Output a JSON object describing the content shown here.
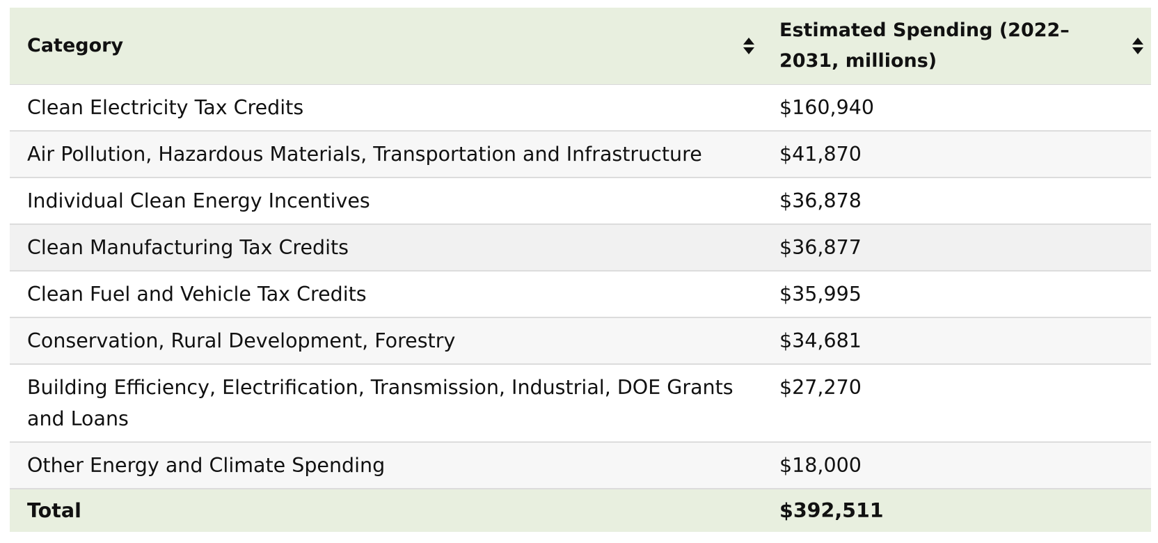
{
  "table": {
    "headers": [
      {
        "label": "Category",
        "sort_icon": "sort-updown-icon"
      },
      {
        "label": "Estimated Spending (2022–2031, millions)",
        "sort_icon": "sort-updown-icon"
      }
    ],
    "rows": [
      {
        "category": "Clean Electricity Tax Credits",
        "spending": "$160,940"
      },
      {
        "category": "Air Pollution, Hazardous Materials, Transportation and Infrastructure",
        "spending": "$41,870"
      },
      {
        "category": "Individual Clean Energy Incentives",
        "spending": "$36,878"
      },
      {
        "category": "Clean Manufacturing Tax Credits",
        "spending": "$36,877"
      },
      {
        "category": "Clean Fuel and Vehicle Tax Credits",
        "spending": "$35,995"
      },
      {
        "category": "Conservation, Rural Development, Forestry",
        "spending": "$34,681"
      },
      {
        "category": "Building Efficiency, Electrification, Transmission, Industrial, DOE Grants and Loans",
        "spending": "$27,270"
      },
      {
        "category": "Other Energy and Climate Spending",
        "spending": "$18,000"
      }
    ],
    "footer": {
      "label": "Total",
      "value": "$392,511"
    }
  },
  "colors": {
    "header_bg": "#e8efdf",
    "row_alt_bg": "#f7f7f7",
    "row_hover_bg": "#f1f1f1",
    "text": "#111111"
  }
}
